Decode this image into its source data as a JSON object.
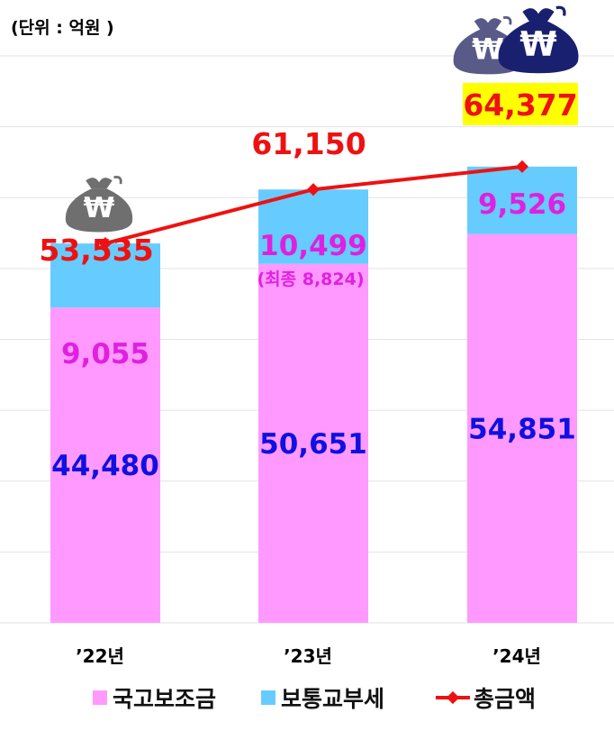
{
  "unit_label": "(단위 : 억원 )",
  "colors": {
    "subsidy": "#ff99ff",
    "tax": "#66ccff",
    "total": "#ee1111",
    "subsidy_label": "#1010e0",
    "tax_label": "#e020e0",
    "highlight": "#ffff00",
    "moneybag_light": "#6f6f6f",
    "moneybag_navy": "#1a2070",
    "moneybag_grey_blue": "#5a5a88"
  },
  "icons": [
    "moneybag-icon",
    "moneybag-icon",
    "moneybag-icon"
  ],
  "chart_data": {
    "type": "bar",
    "stacked": true,
    "categories": [
      "’22년",
      "’23년",
      "’24년"
    ],
    "series": [
      {
        "name": "국고보조금",
        "values": [
          44480,
          50651,
          54851
        ],
        "labels": [
          "44,480",
          "50,651",
          "54,851"
        ]
      },
      {
        "name": "보통교부세",
        "values": [
          9055,
          10499,
          9526
        ],
        "labels": [
          "9,055",
          "10,499",
          "9,526"
        ]
      },
      {
        "name": "총금액",
        "type": "line",
        "values": [
          53535,
          61150,
          64377
        ],
        "labels": [
          "53,535",
          "61,150",
          "64,377"
        ]
      }
    ],
    "annotations": [
      {
        "category": "’23년",
        "text": "(최종 8,824)"
      }
    ],
    "ylim": [
      0,
      80000
    ],
    "grid": true,
    "legend": "bottom",
    "highlighted_total": "64,377"
  }
}
